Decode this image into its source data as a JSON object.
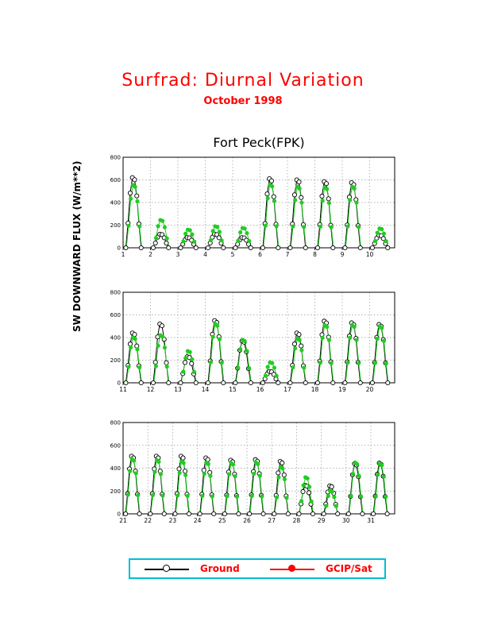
{
  "header": {
    "title": "Surfrad: Diurnal Variation",
    "subtitle": "October 1998",
    "station": "Fort Peck(FPK)"
  },
  "y_axis_label": "SW DOWNWARD FLUX (W/m**2)",
  "legend": {
    "ground_label": "Ground",
    "gcip_label": "GCIP/Sat"
  },
  "colors": {
    "title": "#ff0000",
    "ground": "#000000",
    "gcip_marker": "#22cc22",
    "gcip_legend": "#ff0000",
    "legend_border": "#00c0d0"
  },
  "chart_data": [
    {
      "type": "line",
      "panel": "days 1-10",
      "x_ticks": [
        "1",
        "2",
        "3",
        "4",
        "5",
        "6",
        "7",
        "8",
        "9",
        "10"
      ],
      "ylim": [
        0,
        800
      ],
      "y_ticks": [
        "0",
        "200",
        "400",
        "600",
        "800"
      ],
      "grid": true,
      "daily_peaks": [
        {
          "day": 1,
          "ground": 620,
          "gcip": 555
        },
        {
          "day": 2,
          "ground": 120,
          "gcip": 245
        },
        {
          "day": 3,
          "ground": 90,
          "gcip": 160
        },
        {
          "day": 4,
          "ground": 120,
          "gcip": 190
        },
        {
          "day": 5,
          "ground": 90,
          "gcip": 175
        },
        {
          "day": 6,
          "ground": 610,
          "gcip": 560
        },
        {
          "day": 7,
          "ground": 600,
          "gcip": 540
        },
        {
          "day": 8,
          "ground": 585,
          "gcip": 535
        },
        {
          "day": 9,
          "ground": 575,
          "gcip": 540
        },
        {
          "day": 10,
          "ground": 110,
          "gcip": 170
        }
      ]
    },
    {
      "type": "line",
      "panel": "days 11-20",
      "x_ticks": [
        "11",
        "12",
        "13",
        "14",
        "15",
        "16",
        "17",
        "18",
        "19",
        "20"
      ],
      "ylim": [
        0,
        800
      ],
      "y_ticks": [
        "0",
        "200",
        "400",
        "600",
        "800"
      ],
      "grid": true,
      "daily_peaks": [
        {
          "day": 11,
          "ground": 440,
          "gcip": 400
        },
        {
          "day": 12,
          "ground": 520,
          "gcip": 420
        },
        {
          "day": 13,
          "ground": 230,
          "gcip": 280
        },
        {
          "day": 14,
          "ground": 550,
          "gcip": 520
        },
        {
          "day": 15,
          "ground": 370,
          "gcip": 380
        },
        {
          "day": 16,
          "ground": 100,
          "gcip": 180
        },
        {
          "day": 17,
          "ground": 440,
          "gcip": 390
        },
        {
          "day": 18,
          "ground": 545,
          "gcip": 510
        },
        {
          "day": 19,
          "ground": 530,
          "gcip": 510
        },
        {
          "day": 20,
          "ground": 515,
          "gcip": 500
        }
      ]
    },
    {
      "type": "line",
      "panel": "days 21-31",
      "x_ticks": [
        "21",
        "22",
        "23",
        "24",
        "25",
        "26",
        "27",
        "28",
        "29",
        "30",
        "31"
      ],
      "ylim": [
        0,
        800
      ],
      "y_ticks": [
        "0",
        "200",
        "400",
        "600",
        "800"
      ],
      "grid": true,
      "daily_peaks": [
        {
          "day": 21,
          "ground": 505,
          "gcip": 480
        },
        {
          "day": 22,
          "ground": 505,
          "gcip": 470
        },
        {
          "day": 23,
          "ground": 505,
          "gcip": 460
        },
        {
          "day": 24,
          "ground": 490,
          "gcip": 450
        },
        {
          "day": 25,
          "ground": 470,
          "gcip": 445
        },
        {
          "day": 26,
          "ground": 475,
          "gcip": 450
        },
        {
          "day": 27,
          "ground": 460,
          "gcip": 410
        },
        {
          "day": 28,
          "ground": 250,
          "gcip": 320
        },
        {
          "day": 29,
          "ground": 245,
          "gcip": 200
        },
        {
          "day": 30,
          "ground": 440,
          "gcip": 450
        },
        {
          "day": 31,
          "ground": 445,
          "gcip": 440
        }
      ]
    }
  ]
}
